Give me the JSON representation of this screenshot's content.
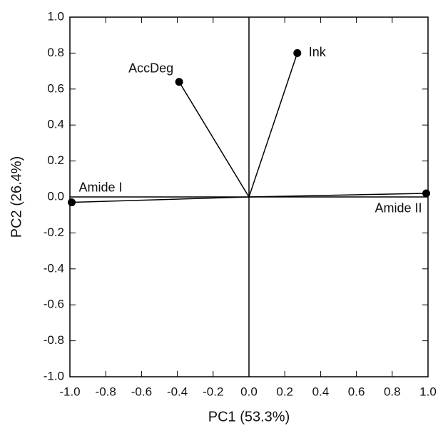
{
  "chart_data": {
    "type": "scatter",
    "x_label": "PC1 (53.3%)",
    "y_label": "PC2 (26.4%)",
    "point_labels": [
      "Ink",
      "AccDeg",
      "Amide I",
      "Amide II"
    ],
    "x": [
      0.27,
      -0.39,
      -0.99,
      0.99
    ],
    "values": [
      0.8,
      0.64,
      -0.03,
      0.02
    ],
    "color": "#000000",
    "xlim": [
      -1,
      1
    ],
    "ylim": [
      -1,
      1
    ],
    "xticks": [
      {
        "value": -1,
        "label": "-1.0"
      },
      -0.8,
      -0.6,
      -0.4,
      -0.2,
      {
        "value": 0,
        "label": "0.0"
      },
      0.2,
      0.4,
      0.6,
      0.8,
      {
        "value": 1,
        "label": "1.0"
      }
    ],
    "yticks": [
      {
        "value": -1,
        "label": "-1.0"
      },
      -0.8,
      -0.6,
      -0.4,
      -0.2,
      {
        "value": 0,
        "label": "0.0"
      },
      0.2,
      0.4,
      0.6,
      0.8,
      {
        "value": 1,
        "label": "1.0"
      }
    ]
  }
}
